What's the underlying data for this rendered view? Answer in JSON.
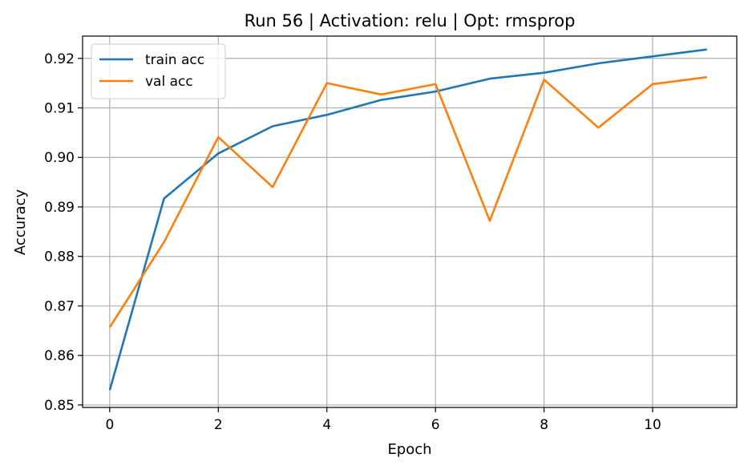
{
  "chart_data": {
    "type": "line",
    "title": "Run 56 | Activation: relu | Opt: rmsprop",
    "xlabel": "Epoch",
    "ylabel": "Accuracy",
    "x": [
      0,
      1,
      2,
      3,
      4,
      5,
      6,
      7,
      8,
      9,
      10,
      11
    ],
    "xlim": [
      -0.5,
      11.55
    ],
    "ylim": [
      0.8495,
      0.9245
    ],
    "xticks": [
      0,
      2,
      4,
      6,
      8,
      10
    ],
    "xtick_labels": [
      "0",
      "2",
      "4",
      "6",
      "8",
      "10"
    ],
    "yticks": [
      0.85,
      0.86,
      0.87,
      0.88,
      0.89,
      0.9,
      0.91,
      0.92
    ],
    "ytick_labels": [
      "0.85",
      "0.86",
      "0.87",
      "0.88",
      "0.89",
      "0.90",
      "0.91",
      "0.92"
    ],
    "grid": true,
    "legend_position": "top-left",
    "series": [
      {
        "name": "train acc",
        "color": "#1f77b4",
        "values": [
          0.853,
          0.8917,
          0.9008,
          0.9063,
          0.9086,
          0.9116,
          0.9133,
          0.9159,
          0.9171,
          0.919,
          0.9204,
          0.9218
        ]
      },
      {
        "name": "val acc",
        "color": "#ff7f0e",
        "values": [
          0.8657,
          0.8829,
          0.9041,
          0.894,
          0.915,
          0.9127,
          0.9148,
          0.8872,
          0.9157,
          0.906,
          0.9148,
          0.9162
        ]
      }
    ]
  }
}
